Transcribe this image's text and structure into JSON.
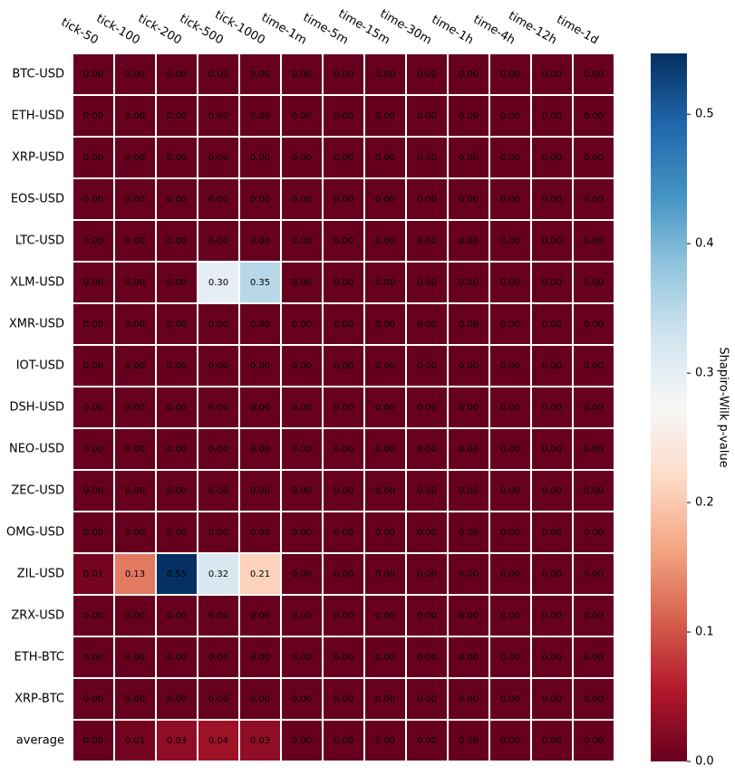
{
  "chart_data": {
    "type": "heatmap",
    "colorbar_label": "Shapiro-Wilk p-value",
    "colormap": "RdBu",
    "zlim": [
      0,
      0.547
    ],
    "zticks": [
      {
        "value": 0,
        "label": "0.0"
      },
      0.1,
      0.2,
      0.3,
      0.4,
      0.5
    ],
    "x": [
      "tick-50",
      "tick-100",
      "tick-200",
      "tick-500",
      "tick-1000",
      "time-1m",
      "time-5m",
      "time-15m",
      "time-30m",
      "time-1h",
      "time-4h",
      "time-12h",
      "time-1d"
    ],
    "y": [
      "BTC-USD",
      "ETH-USD",
      "XRP-USD",
      "EOS-USD",
      "LTC-USD",
      "XLM-USD",
      "XMR-USD",
      "IOT-USD",
      "DSH-USD",
      "NEO-USD",
      "ZEC-USD",
      "OMG-USD",
      "ZIL-USD",
      "ZRX-USD",
      "ETH-BTC",
      "XRP-BTC",
      "average"
    ],
    "z": [
      [
        0,
        0,
        0,
        0,
        0,
        0,
        0,
        0,
        0,
        0,
        0,
        0,
        0
      ],
      [
        0,
        0,
        0,
        0,
        0,
        0,
        0,
        0,
        0,
        0,
        0,
        0,
        0
      ],
      [
        0,
        0,
        0,
        0,
        0,
        0,
        0,
        0,
        0,
        0,
        0,
        0,
        0
      ],
      [
        0,
        0,
        0,
        0,
        0,
        0,
        0,
        0,
        0,
        0,
        0,
        0,
        0
      ],
      [
        0,
        0,
        0,
        0,
        0,
        0,
        0,
        0,
        0,
        0,
        0,
        0,
        0
      ],
      [
        0,
        0,
        0,
        0.3,
        0.35,
        0,
        0,
        0,
        0,
        0,
        0,
        0,
        0
      ],
      [
        0,
        0,
        0,
        0,
        0,
        0,
        0,
        0,
        0,
        0,
        0,
        0,
        0
      ],
      [
        0,
        0,
        0,
        0,
        0,
        0,
        0,
        0,
        0,
        0,
        0,
        0,
        0
      ],
      [
        0,
        0,
        0,
        0,
        0,
        0,
        0,
        0,
        0,
        0,
        0,
        0,
        0
      ],
      [
        0,
        0,
        0,
        0,
        0,
        0,
        0,
        0,
        0,
        0,
        0,
        0,
        0
      ],
      [
        0,
        0,
        0,
        0,
        0,
        0,
        0,
        0,
        0,
        0,
        0,
        0,
        0
      ],
      [
        0,
        0,
        0,
        0,
        0,
        0,
        0,
        0,
        0,
        0,
        0,
        0,
        0
      ],
      [
        0.01,
        0.13,
        0.55,
        0.32,
        0.21,
        0,
        0,
        0,
        0,
        0,
        0,
        0,
        0
      ],
      [
        0,
        0,
        0,
        0,
        0,
        0,
        0,
        0,
        0,
        0,
        0,
        0,
        0
      ],
      [
        0,
        0,
        0,
        0,
        0,
        0,
        0,
        0,
        0,
        0,
        0,
        0,
        0
      ],
      [
        0,
        0,
        0,
        0,
        0,
        0,
        0,
        0,
        0,
        0,
        0,
        0,
        0
      ],
      [
        0,
        0.01,
        0.03,
        0.04,
        0.03,
        0,
        0,
        0,
        0,
        0,
        0,
        0,
        0
      ]
    ],
    "value_labels": [
      [
        "0.00",
        "0.00",
        "0.00",
        "0.00",
        "0.00",
        "0.00",
        "0.00",
        "0.00",
        "0.00",
        "0.00",
        "0.00",
        "0.00",
        "0.00"
      ],
      [
        "0.00",
        "0.00",
        "0.00",
        "0.00",
        "0.00",
        "0.00",
        "0.00",
        "0.00",
        "0.00",
        "0.00",
        "0.00",
        "0.00",
        "0.00"
      ],
      [
        "0.00",
        "0.00",
        "0.00",
        "0.00",
        "0.00",
        "0.00",
        "0.00",
        "0.00",
        "0.00",
        "0.00",
        "0.00",
        "0.00",
        "0.00"
      ],
      [
        "0.00",
        "0.00",
        "0.00",
        "0.00",
        "0.00",
        "0.00",
        "0.00",
        "0.00",
        "0.00",
        "0.00",
        "0.00",
        "0.00",
        "0.00"
      ],
      [
        "0.00",
        "0.00",
        "0.00",
        "0.00",
        "0.00",
        "0.00",
        "0.00",
        "0.00",
        "0.00",
        "0.00",
        "0.00",
        "0.00",
        "0.00"
      ],
      [
        "0.00",
        "0.00",
        "0.00",
        "0.30",
        "0.35",
        "0.00",
        "0.00",
        "0.00",
        "0.00",
        "0.00",
        "0.00",
        "0.00",
        "0.00"
      ],
      [
        "0.00",
        "0.00",
        "0.00",
        "0.00",
        "0.00",
        "0.00",
        "0.00",
        "0.00",
        "0.00",
        "0.00",
        "0.00",
        "0.00",
        "0.00"
      ],
      [
        "0.00",
        "0.00",
        "0.00",
        "0.00",
        "0.00",
        "0.00",
        "0.00",
        "0.00",
        "0.00",
        "0.00",
        "0.00",
        "0.00",
        "0.00"
      ],
      [
        "0.00",
        "0.00",
        "0.00",
        "0.00",
        "0.00",
        "0.00",
        "0.00",
        "0.00",
        "0.00",
        "0.00",
        "0.00",
        "0.00",
        "0.00"
      ],
      [
        "0.00",
        "0.00",
        "0.00",
        "0.00",
        "0.00",
        "0.00",
        "0.00",
        "0.00",
        "0.00",
        "0.00",
        "0.00",
        "0.00",
        "0.00"
      ],
      [
        "0.00",
        "0.00",
        "0.00",
        "0.00",
        "0.00",
        "0.00",
        "0.00",
        "0.00",
        "0.00",
        "0.00",
        "0.00",
        "0.00",
        "0.00"
      ],
      [
        "0.00",
        "0.00",
        "0.00",
        "0.00",
        "0.00",
        "0.00",
        "0.00",
        "0.00",
        "0.00",
        "0.00",
        "0.00",
        "0.00",
        "0.00"
      ],
      [
        "0.01",
        "0.13",
        "0.55",
        "0.32",
        "0.21",
        "0.00",
        "0.00",
        "0.00",
        "0.00",
        "0.00",
        "0.00",
        "0.00",
        "0.00"
      ],
      [
        "0.00",
        "0.00",
        "0.00",
        "0.00",
        "0.00",
        "0.00",
        "0.00",
        "0.00",
        "0.00",
        "0.00",
        "0.00",
        "0.00",
        "0.00"
      ],
      [
        "0.00",
        "0.00",
        "0.00",
        "0.00",
        "0.00",
        "0.00",
        "0.00",
        "0.00",
        "0.00",
        "0.00",
        "0.00",
        "0.00",
        "0.00"
      ],
      [
        "0.00",
        "0.00",
        "0.00",
        "0.00",
        "0.00",
        "0.00",
        "0.00",
        "0.00",
        "0.00",
        "0.00",
        "0.00",
        "0.00",
        "0.00"
      ],
      [
        "0.00",
        "0.01",
        "0.03",
        "0.04",
        "0.03",
        "0.00",
        "0.00",
        "0.00",
        "0.00",
        "0.00",
        "0.00",
        "0.00",
        "0.00"
      ]
    ]
  }
}
